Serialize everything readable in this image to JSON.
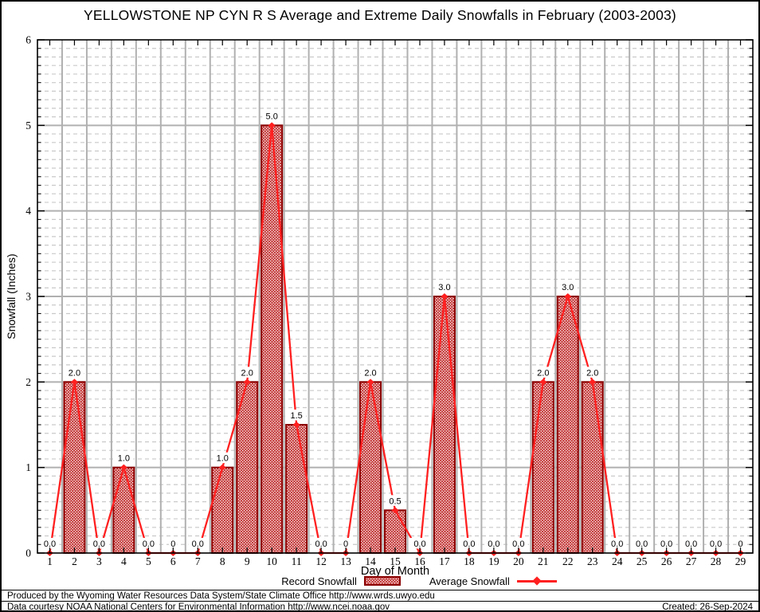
{
  "title": "YELLOWSTONE NP CYN R S Average and Extreme Daily Snowfalls in February (2003-2003)",
  "chart_data": {
    "type": "bar",
    "title": "YELLOWSTONE NP CYN R S Average and Extreme Daily Snowfalls in February (2003-2003)",
    "xlabel": "Day of Month",
    "ylabel": "Snowfall (Inches)",
    "ylim": [
      0,
      6
    ],
    "yticks": [
      0,
      1,
      2,
      3,
      4,
      5,
      6
    ],
    "y_minor_step": 0.1,
    "grid": true,
    "legend_position": "bottom",
    "categories": [
      1,
      2,
      3,
      4,
      5,
      6,
      7,
      8,
      9,
      10,
      11,
      12,
      13,
      14,
      15,
      16,
      17,
      18,
      19,
      20,
      21,
      22,
      23,
      24,
      25,
      26,
      27,
      28,
      29
    ],
    "series": [
      {
        "name": "Record Snowfall",
        "type": "bar",
        "values": [
          0,
          2,
          0,
          1,
          0,
          0,
          0,
          1,
          2,
          5,
          1.5,
          0,
          0,
          2,
          0.5,
          0,
          3,
          0,
          0,
          0,
          2,
          3,
          2,
          0,
          0,
          0,
          0,
          0,
          0
        ]
      },
      {
        "name": "Average Snowfall",
        "type": "line",
        "values": [
          0,
          2,
          0,
          1,
          0,
          0,
          0,
          1,
          2,
          5,
          1.5,
          0,
          0,
          2,
          0.5,
          0,
          3,
          0,
          0,
          0,
          2,
          3,
          2,
          0,
          0,
          0,
          0,
          0,
          0
        ]
      }
    ],
    "point_labels": [
      "0.0",
      "2.0",
      "0.0",
      "1.0",
      "0.0",
      "0",
      "0.0",
      "1.0",
      "2.0",
      "5.0",
      "1.5",
      "0.0",
      "0",
      "2.0",
      "0.5",
      "0.0",
      "3.0",
      "0.0",
      "0.0",
      "0.0",
      "2.0",
      "3.0",
      "2.0",
      "0.0",
      "0.0",
      "0.0",
      "0.0",
      "0.0",
      "0"
    ],
    "colors": {
      "bar_edge": "#8b0000",
      "bar_hatch": "#c23030",
      "line": "#ff2020",
      "grid_major": "#b0b0b0",
      "grid_minor": "#c9c9c9",
      "axis": "#000000",
      "label_text": "#000000"
    }
  },
  "legend": {
    "record_label": "Record Snowfall",
    "average_label": "Average Snowfall"
  },
  "footer": {
    "line1": "Produced by the Wyoming Water Resources Data System/State Climate Office http://www.wrds.uwyo.edu",
    "line2": "Data courtesy NOAA National Centers for Environmental Information http://www.ncei.noaa.gov",
    "created": "Created: 26-Sep-2024"
  }
}
